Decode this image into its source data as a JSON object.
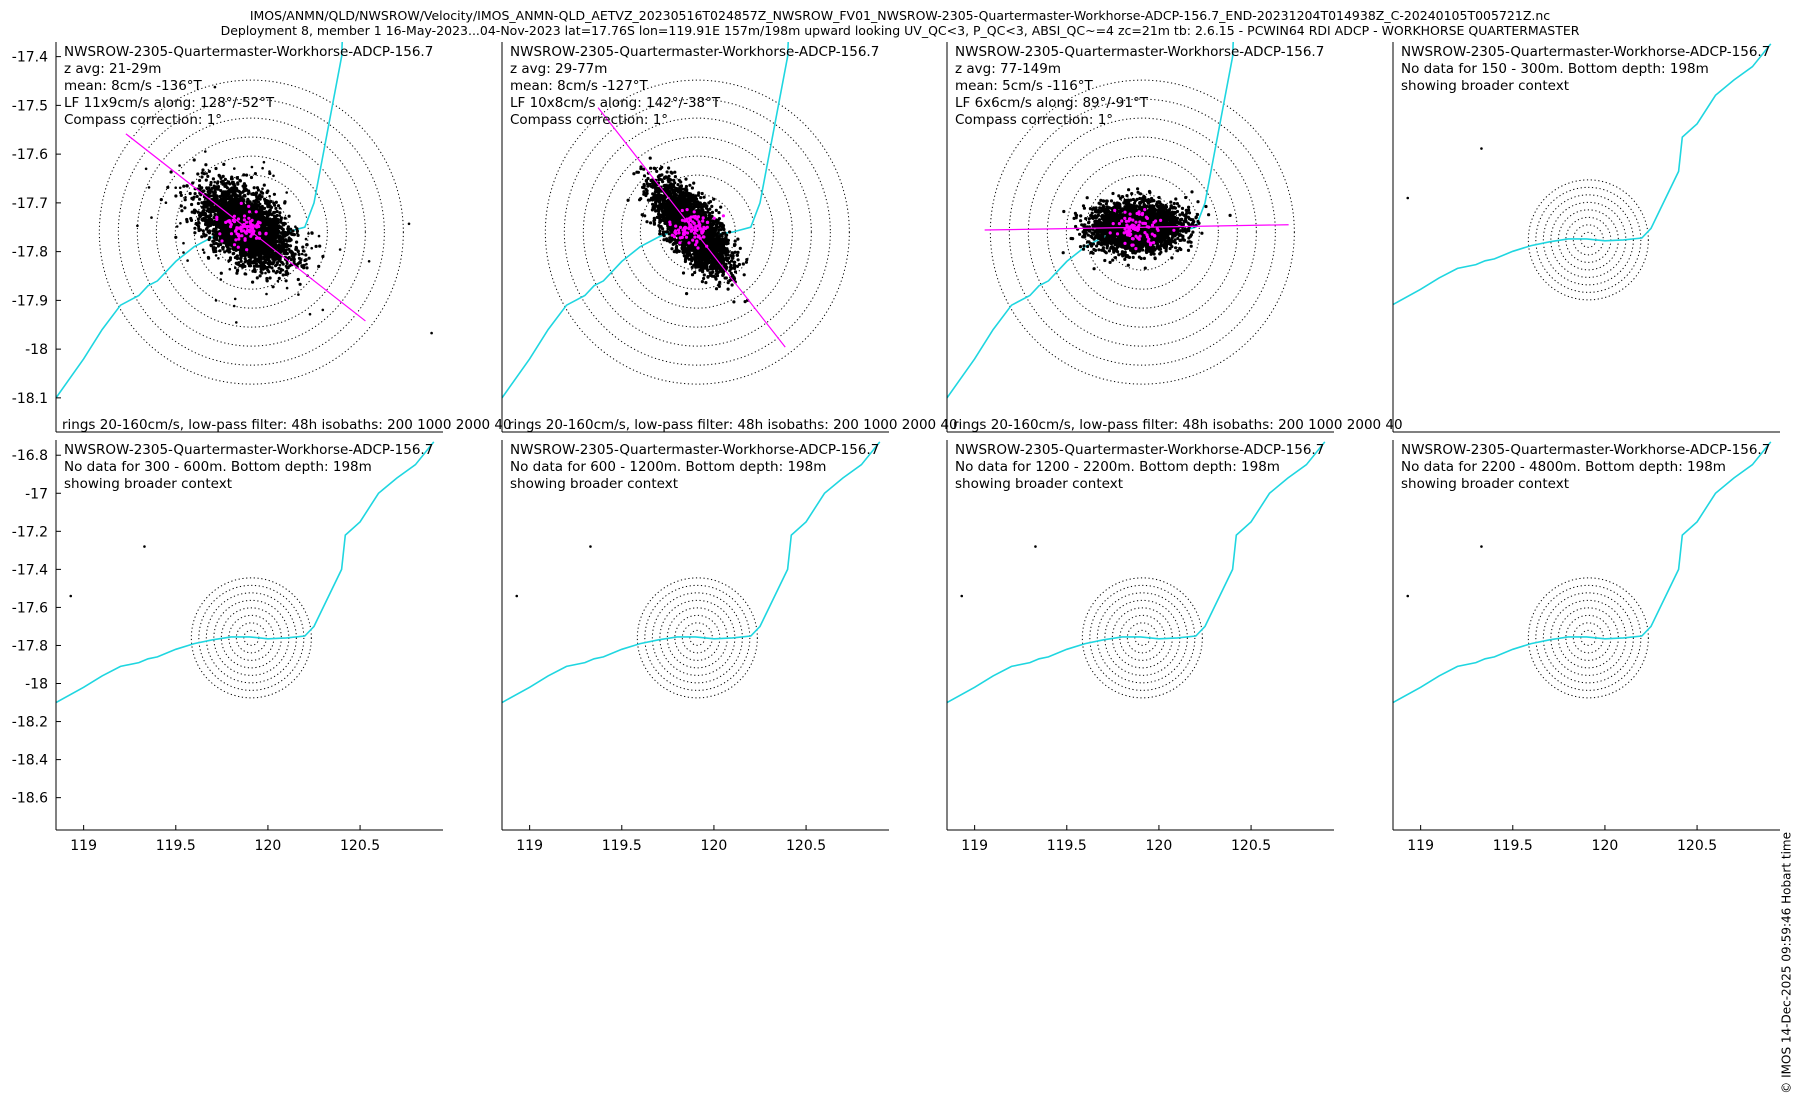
{
  "header": {
    "line1": "IMOS/ANMN/QLD/NWSROW/Velocity/IMOS_ANMN-QLD_AETVZ_20230516T024857Z_NWSROW_FV01_NWSROW-2305-Quartermaster-Workhorse-ADCP-156.7_END-20231204T014938Z_C-20240105T005721Z.nc",
    "line2": "Deployment 8, member 1 16-May-2023...04-Nov-2023 lat=17.76S lon=119.91E 157m/198m upward looking UV_QC<3, P_QC<3, ABSI_QC~=4 zc=21m tb: 2.6.15 - PCWIN64 RDI ADCP - WORKHORSE QUARTERMASTER"
  },
  "copyright": "© IMOS 14-Dec-2025 09:59:46 Hobart time",
  "colors": {
    "isobath": "#1fd6e0",
    "axis_line": "#ff00ff",
    "scatter": "#000000",
    "lowpass": "#ff00ff",
    "rings": "#000000"
  },
  "chart_data": {
    "type": "scatter",
    "site": {
      "lon": 119.91,
      "lat": -17.76
    },
    "rings_cms": [
      20,
      40,
      60,
      80,
      100,
      120,
      140,
      160
    ],
    "rings_caption": "rings 20-160cm/s, low-pass filter: 48h isobaths: 200 1000 2000 40",
    "xticks": [
      119,
      119.5,
      120,
      120.5
    ],
    "xtick_labels": [
      "119",
      "119.5",
      "120",
      "120.5"
    ],
    "panels": [
      {
        "title": "NWSROW-2305-Quartermaster-Workhorse-ADCP-156.7",
        "lines": [
          "z avg: 21-29m",
          "mean: 8cm/s -136°T",
          "LF 11x9cm/s along: 128°/-52°T",
          "Compass correction: 1°"
        ],
        "has_data": true,
        "caption": "rings 20-160cm/s, low-pass filter: 48h isobaths: 200 1000 2000 40",
        "xlim": [
          118.85,
          120.95
        ],
        "ylim": [
          -18.17,
          -17.37
        ],
        "yticks": [
          -17.4,
          -17.5,
          -17.6,
          -17.7,
          -17.8,
          -17.9,
          -18,
          -18.1
        ],
        "ytick_labels": [
          "-17.4",
          "-17.5",
          "-17.6",
          "-17.7",
          "-17.8",
          "-17.9",
          "-18",
          "-18.1"
        ],
        "along_deg": 128,
        "spread": [
          1.3,
          0.75
        ],
        "outliers": 1
      },
      {
        "title": "NWSROW-2305-Quartermaster-Workhorse-ADCP-156.7",
        "lines": [
          "z avg: 29-77m",
          "mean: 8cm/s -127°T",
          "LF 10x8cm/s along: 142°/-38°T",
          "Compass correction: 1°"
        ],
        "has_data": true,
        "caption": "rings 20-160cm/s, low-pass filter: 48h isobaths: 200 1000 2000 40",
        "xlim": [
          118.85,
          120.95
        ],
        "ylim": [
          -18.17,
          -17.37
        ],
        "yticks": [],
        "ytick_labels": [],
        "along_deg": 142,
        "spread": [
          1.35,
          0.55
        ],
        "outliers": 0
      },
      {
        "title": "NWSROW-2305-Quartermaster-Workhorse-ADCP-156.7",
        "lines": [
          "z avg: 77-149m",
          "mean: 5cm/s -116°T",
          "LF 6x6cm/s along: 89°/-91°T",
          "Compass correction: 1°"
        ],
        "has_data": true,
        "caption": "rings 20-160cm/s, low-pass filter: 48h isobaths: 200 1000 2000 40",
        "xlim": [
          118.85,
          120.95
        ],
        "ylim": [
          -18.17,
          -17.37
        ],
        "yticks": [],
        "ytick_labels": [],
        "along_deg": 89,
        "spread": [
          1.15,
          0.6
        ],
        "outliers": 0
      },
      {
        "title": "NWSROW-2305-Quartermaster-Workhorse-ADCP-156.7",
        "lines": [
          "No data for 150 - 300m. Bottom depth: 198m",
          "showing broader context"
        ],
        "has_data": false,
        "caption": "",
        "xlim": [
          118.85,
          120.95
        ],
        "ylim": [
          -18.77,
          -16.72
        ],
        "yticks": [],
        "ytick_labels": []
      },
      {
        "title": "NWSROW-2305-Quartermaster-Workhorse-ADCP-156.7",
        "lines": [
          "No data for 300 - 600m. Bottom depth: 198m",
          "showing broader context"
        ],
        "has_data": false,
        "caption": "",
        "xlim": [
          118.85,
          120.95
        ],
        "ylim": [
          -18.77,
          -16.72
        ],
        "yticks": [
          -16.8,
          -17,
          -17.2,
          -17.4,
          -17.6,
          -17.8,
          -18,
          -18.2,
          -18.4,
          -18.6
        ],
        "ytick_labels": [
          "-16.8",
          "-17",
          "-17.2",
          "-17.4",
          "-17.6",
          "-17.8",
          "-18",
          "-18.2",
          "-18.4",
          "-18.6"
        ]
      },
      {
        "title": "NWSROW-2305-Quartermaster-Workhorse-ADCP-156.7",
        "lines": [
          "No data for 600 - 1200m. Bottom depth: 198m",
          "showing broader context"
        ],
        "has_data": false,
        "caption": "",
        "xlim": [
          118.85,
          120.95
        ],
        "ylim": [
          -18.77,
          -16.72
        ],
        "yticks": [],
        "ytick_labels": []
      },
      {
        "title": "NWSROW-2305-Quartermaster-Workhorse-ADCP-156.7",
        "lines": [
          "No data for 1200 - 2200m. Bottom depth: 198m",
          "showing broader context"
        ],
        "has_data": false,
        "caption": "",
        "xlim": [
          118.85,
          120.95
        ],
        "ylim": [
          -18.77,
          -16.72
        ],
        "yticks": [],
        "ytick_labels": []
      },
      {
        "title": "NWSROW-2305-Quartermaster-Workhorse-ADCP-156.7",
        "lines": [
          "No data for 2200 - 4800m. Bottom depth: 198m",
          "showing broader context"
        ],
        "has_data": false,
        "caption": "",
        "xlim": [
          118.85,
          120.95
        ],
        "ylim": [
          -18.77,
          -16.72
        ],
        "yticks": [],
        "ytick_labels": []
      }
    ],
    "isobath_200m": {
      "lon": [
        118.85,
        119.0,
        119.1,
        119.2,
        119.3,
        119.35,
        119.4,
        119.5,
        119.6,
        119.7,
        119.8,
        119.9,
        120.0,
        120.1,
        120.2,
        120.25,
        120.3,
        120.35,
        120.4,
        120.42,
        120.5,
        120.6,
        120.7,
        120.8,
        120.9
      ],
      "lat": [
        -18.1,
        -18.02,
        -17.96,
        -17.91,
        -17.89,
        -17.87,
        -17.86,
        -17.82,
        -17.79,
        -17.77,
        -17.755,
        -17.755,
        -17.765,
        -17.76,
        -17.75,
        -17.7,
        -17.6,
        -17.5,
        -17.4,
        -17.22,
        -17.15,
        -17.0,
        -16.92,
        -16.85,
        -16.73
      ]
    },
    "points": [
      {
        "lon": 119.33,
        "lat": -17.28
      },
      {
        "lon": 118.93,
        "lat": -17.54
      }
    ]
  }
}
